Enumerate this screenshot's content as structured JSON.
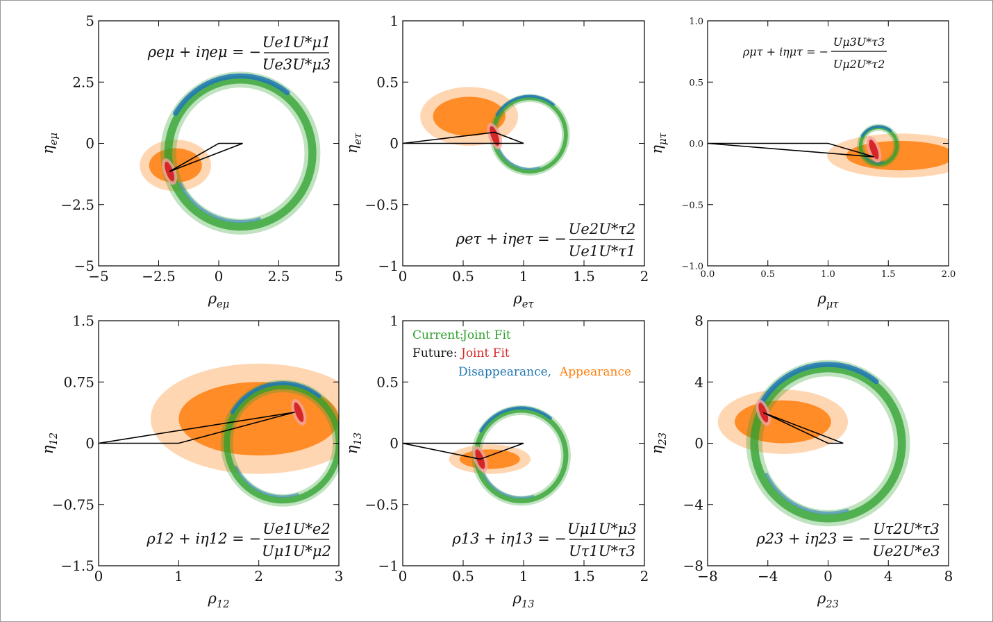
{
  "colors": {
    "appearance": "#ff7f0e",
    "disappearance": "#1f77b4",
    "current_joint": "#2ca02c",
    "future_joint": "#d62728",
    "triangle": "#000000"
  },
  "legend": {
    "current_label": "Current:",
    "current_joint": "Joint Fit",
    "future_label": "Future:",
    "future_joint": "Joint Fit",
    "disappearance": "Disappearance,",
    "appearance": "Appearance"
  },
  "chart_data": [
    {
      "id": "emu",
      "type": "scatter",
      "xlabel": "ρeμ",
      "ylabel": "ηeμ",
      "xlim": [
        -5,
        5
      ],
      "ylim": [
        -5,
        5
      ],
      "xticks": [
        -5,
        -2.5,
        0,
        2.5,
        5
      ],
      "yticks": [
        -5,
        -2.5,
        0,
        2.5,
        5
      ],
      "xtick_labels": [
        "−5",
        "−2.5",
        "0",
        "2.5",
        "5"
      ],
      "ytick_labels": [
        "−5",
        "−2.5",
        "0",
        "2.5",
        "5"
      ],
      "formula": {
        "lhs": "ρeμ + iηeμ = −",
        "num": "Ue1U*μ1",
        "den": "Ue3U*μ3",
        "position": "top-right"
      },
      "triangle": [
        [
          0,
          0
        ],
        [
          1,
          0
        ],
        [
          -2.05,
          -1.15
        ]
      ],
      "ring": {
        "cx": 0.9,
        "cy": -0.4,
        "r": 3.0
      },
      "appearance_blob": {
        "cx": -1.8,
        "cy": -0.9,
        "rx": 1.1,
        "ry": 0.7
      },
      "future_point": {
        "cx": -2.05,
        "cy": -1.15
      }
    },
    {
      "id": "etau",
      "type": "scatter",
      "xlabel": "ρeτ",
      "ylabel": "ηeτ",
      "xlim": [
        0,
        2
      ],
      "ylim": [
        -1,
        1
      ],
      "xticks": [
        0,
        0.5,
        1,
        1.5,
        2
      ],
      "yticks": [
        -1,
        -0.5,
        0,
        0.5,
        1
      ],
      "xtick_labels": [
        "0",
        "0.5",
        "1",
        "1.5",
        "2"
      ],
      "ytick_labels": [
        "−1",
        "−0.5",
        "0",
        "0.5",
        "1"
      ],
      "formula": {
        "lhs": "ρeτ + iηeτ = −",
        "num": "Ue2U*τ2",
        "den": "Ue1U*τ1",
        "position": "bottom-right"
      },
      "triangle": [
        [
          0,
          0
        ],
        [
          1,
          0
        ],
        [
          0.76,
          0.09
        ]
      ],
      "ring": {
        "cx": 1.05,
        "cy": 0.07,
        "r": 0.3
      },
      "appearance_blob": {
        "cx": 0.55,
        "cy": 0.22,
        "rx": 0.3,
        "ry": 0.16
      },
      "future_point": {
        "cx": 0.76,
        "cy": 0.06
      }
    },
    {
      "id": "mutau",
      "type": "scatter",
      "xlabel": "ρμτ",
      "ylabel": "ημτ",
      "xlim": [
        0,
        2
      ],
      "ylim": [
        -1,
        1
      ],
      "xticks": [
        0,
        0.5,
        1,
        1.5,
        2
      ],
      "yticks": [
        -1,
        -0.5,
        0,
        0.5,
        1
      ],
      "xtick_labels": [
        "0.0",
        "0.5",
        "1.0",
        "1.5",
        "2.0"
      ],
      "ytick_labels": [
        "−1.0",
        "−0.5",
        "0.0",
        "0.5",
        "1.0"
      ],
      "formula": {
        "lhs": "ρμτ + iημτ = −",
        "num": "Uμ3U*τ3",
        "den": "Uμ2U*τ2",
        "position": "top-left"
      },
      "triangle": [
        [
          0,
          0
        ],
        [
          1,
          0
        ],
        [
          1.38,
          -0.11
        ]
      ],
      "ring": {
        "cx": 1.42,
        "cy": -0.02,
        "r": 0.15
      },
      "appearance_blob": {
        "cx": 1.6,
        "cy": -0.1,
        "rx": 0.45,
        "ry": 0.12
      },
      "future_point": {
        "cx": 1.38,
        "cy": -0.05
      }
    },
    {
      "id": "12",
      "type": "scatter",
      "xlabel": "ρ12",
      "ylabel": "η12",
      "xlim": [
        0,
        3
      ],
      "ylim": [
        -1.5,
        1.5
      ],
      "xticks": [
        0,
        1,
        2,
        3
      ],
      "yticks": [
        -1.5,
        -0.75,
        0,
        0.75,
        1.5
      ],
      "xtick_labels": [
        "0",
        "1",
        "2",
        "3"
      ],
      "ytick_labels": [
        "−1.5",
        "−0.75",
        "0",
        "0.75",
        "1.5"
      ],
      "formula": {
        "lhs": "ρ12 + iη12 = −",
        "num": "Ue1U*e2",
        "den": "Uμ1U*μ2",
        "position": "bottom-right"
      },
      "triangle": [
        [
          0,
          0
        ],
        [
          1,
          0
        ],
        [
          2.45,
          0.38
        ]
      ],
      "ring": {
        "cx": 2.3,
        "cy": 0.0,
        "r": 0.7
      },
      "appearance_blob": {
        "cx": 2.0,
        "cy": 0.3,
        "rx": 1.0,
        "ry": 0.45
      },
      "future_point": {
        "cx": 2.5,
        "cy": 0.38
      }
    },
    {
      "id": "13",
      "type": "scatter",
      "xlabel": "ρ13",
      "ylabel": "η13",
      "xlim": [
        0,
        2
      ],
      "ylim": [
        -1,
        1
      ],
      "xticks": [
        0,
        0.5,
        1,
        1.5,
        2
      ],
      "yticks": [
        -1,
        -0.5,
        0,
        0.5,
        1
      ],
      "xtick_labels": [
        "0",
        "0.5",
        "1",
        "1.5",
        "2"
      ],
      "ytick_labels": [
        "−1",
        "−0.5",
        "0",
        "0.5",
        "1"
      ],
      "formula": {
        "lhs": "ρ13 + iη13 = −",
        "num": "Uμ1U*μ3",
        "den": "Uτ1U*τ3",
        "position": "bottom-right"
      },
      "triangle": [
        [
          0,
          0
        ],
        [
          1,
          0
        ],
        [
          0.64,
          -0.13
        ]
      ],
      "ring": {
        "cx": 0.98,
        "cy": -0.1,
        "r": 0.37
      },
      "appearance_blob": {
        "cx": 0.72,
        "cy": -0.13,
        "rx": 0.25,
        "ry": 0.08
      },
      "future_point": {
        "cx": 0.64,
        "cy": -0.13
      }
    },
    {
      "id": "23",
      "type": "scatter",
      "xlabel": "ρ23",
      "ylabel": "η23",
      "xlim": [
        -8,
        8
      ],
      "ylim": [
        -8,
        8
      ],
      "xticks": [
        -8,
        -4,
        0,
        4,
        8
      ],
      "yticks": [
        -8,
        -4,
        0,
        4,
        8
      ],
      "xtick_labels": [
        "−8",
        "−4",
        "0",
        "4",
        "8"
      ],
      "ytick_labels": [
        "−8",
        "−4",
        "0",
        "4",
        "8"
      ],
      "formula": {
        "lhs": "ρ23 + iη23 = −",
        "num": "Uτ2U*τ3",
        "den": "Ue2U*e3",
        "position": "bottom-right"
      },
      "triangle": [
        [
          0,
          0
        ],
        [
          1,
          0
        ],
        [
          -4.3,
          2.0
        ]
      ],
      "ring": {
        "cx": 0.0,
        "cy": 0.0,
        "r": 4.9
      },
      "appearance_blob": {
        "cx": -3.0,
        "cy": 1.4,
        "rx": 3.2,
        "ry": 1.4
      },
      "future_point": {
        "cx": -4.3,
        "cy": 2.0
      }
    }
  ]
}
